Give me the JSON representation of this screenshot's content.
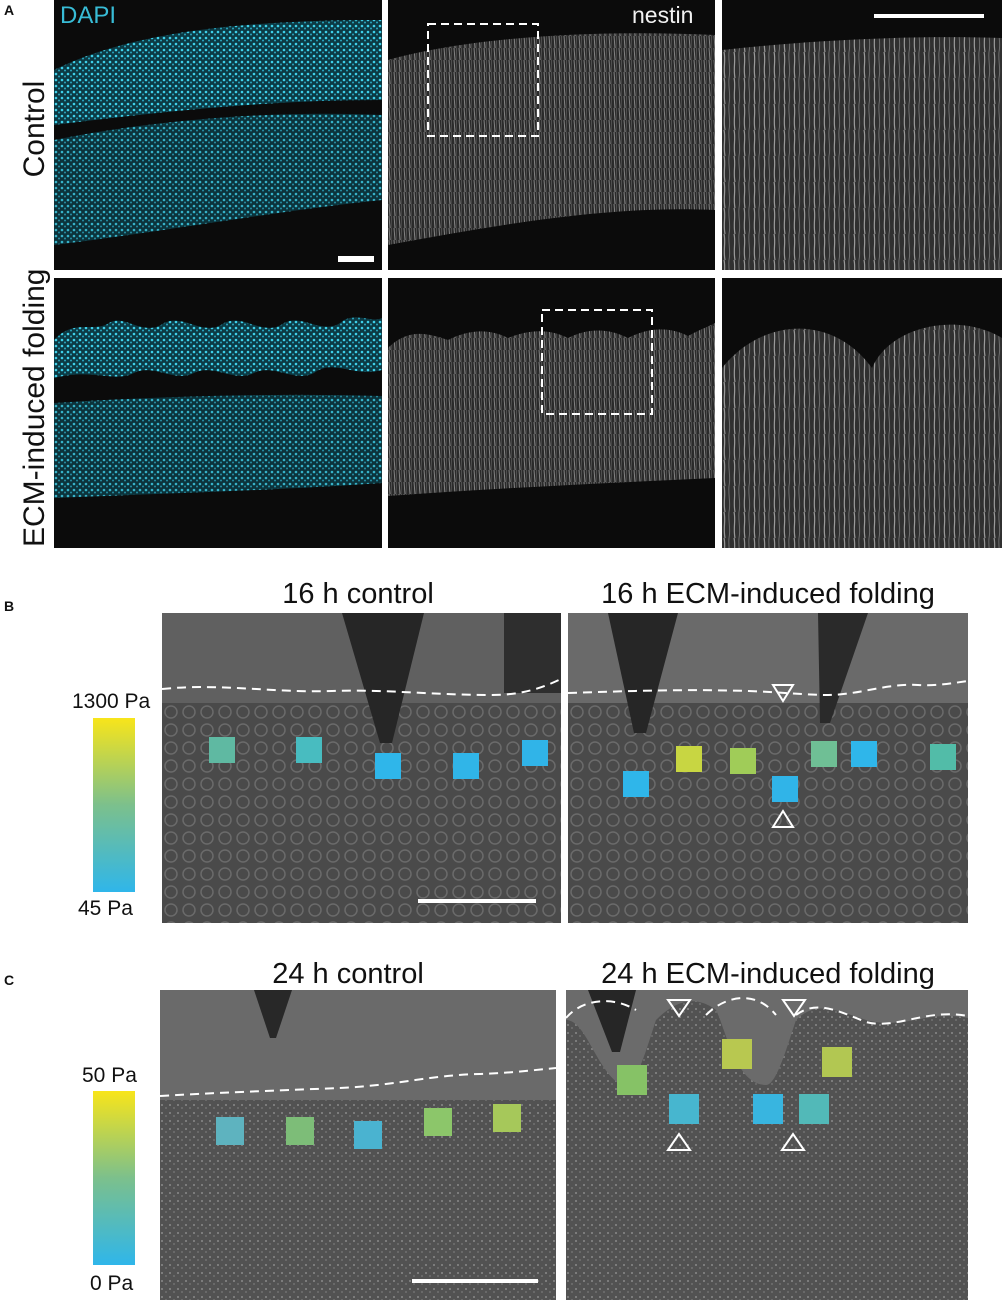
{
  "panel_a": {
    "letter": "A",
    "stain_dapi": "DAPI",
    "stain_nestin": "nestin",
    "row_labels": [
      "Control",
      "ECM-induced folding"
    ]
  },
  "panel_b": {
    "letter": "B",
    "title_left": "16 h control",
    "title_right": "16 h ECM-induced folding",
    "colorbar_max": "1300 Pa",
    "colorbar_min": "45 Pa"
  },
  "panel_c": {
    "letter": "C",
    "title_left": "24 h control",
    "title_right": "24 h ECM-induced folding",
    "colorbar_max": "50 Pa",
    "colorbar_min": "0 Pa"
  },
  "colors": {
    "dapi_cyan": "#38bcd6",
    "colormap_high": "#f8e51a",
    "colormap_mid": "#7cc08c",
    "colormap_low": "#2fb6ea"
  }
}
